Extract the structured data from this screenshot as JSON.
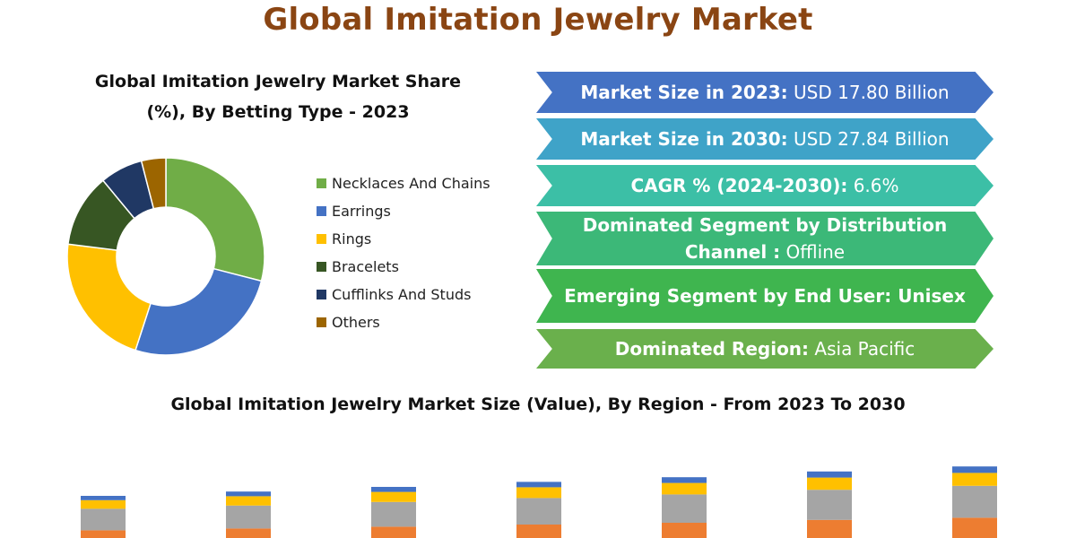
{
  "title": "Global Imitation Jewelry Market",
  "pie": {
    "title_line1": "Global Imitation Jewelry Market Share",
    "title_line2": "(%), By Betting Type - 2023"
  },
  "banners": [
    {
      "label": "Market Size in 2023:",
      "value": " USD 17.80 Billion",
      "color": "#4472c4"
    },
    {
      "label": "Market Size in 2030:",
      "value": " USD 27.84 Billion",
      "color": "#3fa3c8"
    },
    {
      "label": "CAGR % (2024-2030):",
      "value": " 6.6%",
      "color": "#3cbfa6"
    },
    {
      "label": "Dominated Segment by Distribution Channel :",
      "value": " Offline",
      "color": "#3cb878"
    },
    {
      "label": "Emerging Segment by End User: Unisex",
      "value": "",
      "color": "#3fb54f"
    },
    {
      "label": "Dominated Region:",
      "value": " Asia Pacific",
      "color": "#6ab04c"
    }
  ],
  "bar_title": "Global Imitation Jewelry Market Size (Value), By Region - From 2023 To 2030",
  "chart_data": [
    {
      "type": "pie",
      "variant": "donut",
      "title": "Global Imitation Jewelry Market Share (%), By Betting Type - 2023",
      "legend_position": "right",
      "slices": [
        {
          "label": "Necklaces And Chains",
          "value": 29,
          "color": "#70ad47"
        },
        {
          "label": "Earrings",
          "value": 26,
          "color": "#4472c4"
        },
        {
          "label": "Rings",
          "value": 22,
          "color": "#ffc000"
        },
        {
          "label": "Bracelets",
          "value": 12,
          "color": "#375623"
        },
        {
          "label": "Cufflinks And Studs",
          "value": 7,
          "color": "#203864"
        },
        {
          "label": "Others",
          "value": 4,
          "color": "#9c6500"
        }
      ]
    },
    {
      "type": "bar",
      "variant": "stacked",
      "title": "Global Imitation Jewelry Market Size (Value), By Region - From 2023 To 2030",
      "categories": [
        "",
        "",
        "",
        "",
        "",
        "",
        ""
      ],
      "series": [
        {
          "color": "#ed7d31",
          "values": [
            6.9,
            7.4,
            7.9,
            8.5,
            9.0,
            9.8,
            10.4
          ]
        },
        {
          "color": "#a5a5a5",
          "values": [
            6.0,
            6.4,
            6.9,
            7.4,
            7.9,
            8.4,
            8.9
          ]
        },
        {
          "color": "#ffc000",
          "values": [
            2.4,
            2.6,
            2.8,
            3.0,
            3.2,
            3.4,
            3.6
          ]
        },
        {
          "color": "#4472c4",
          "values": [
            1.2,
            1.3,
            1.4,
            1.5,
            1.6,
            1.7,
            1.8
          ]
        }
      ]
    }
  ]
}
